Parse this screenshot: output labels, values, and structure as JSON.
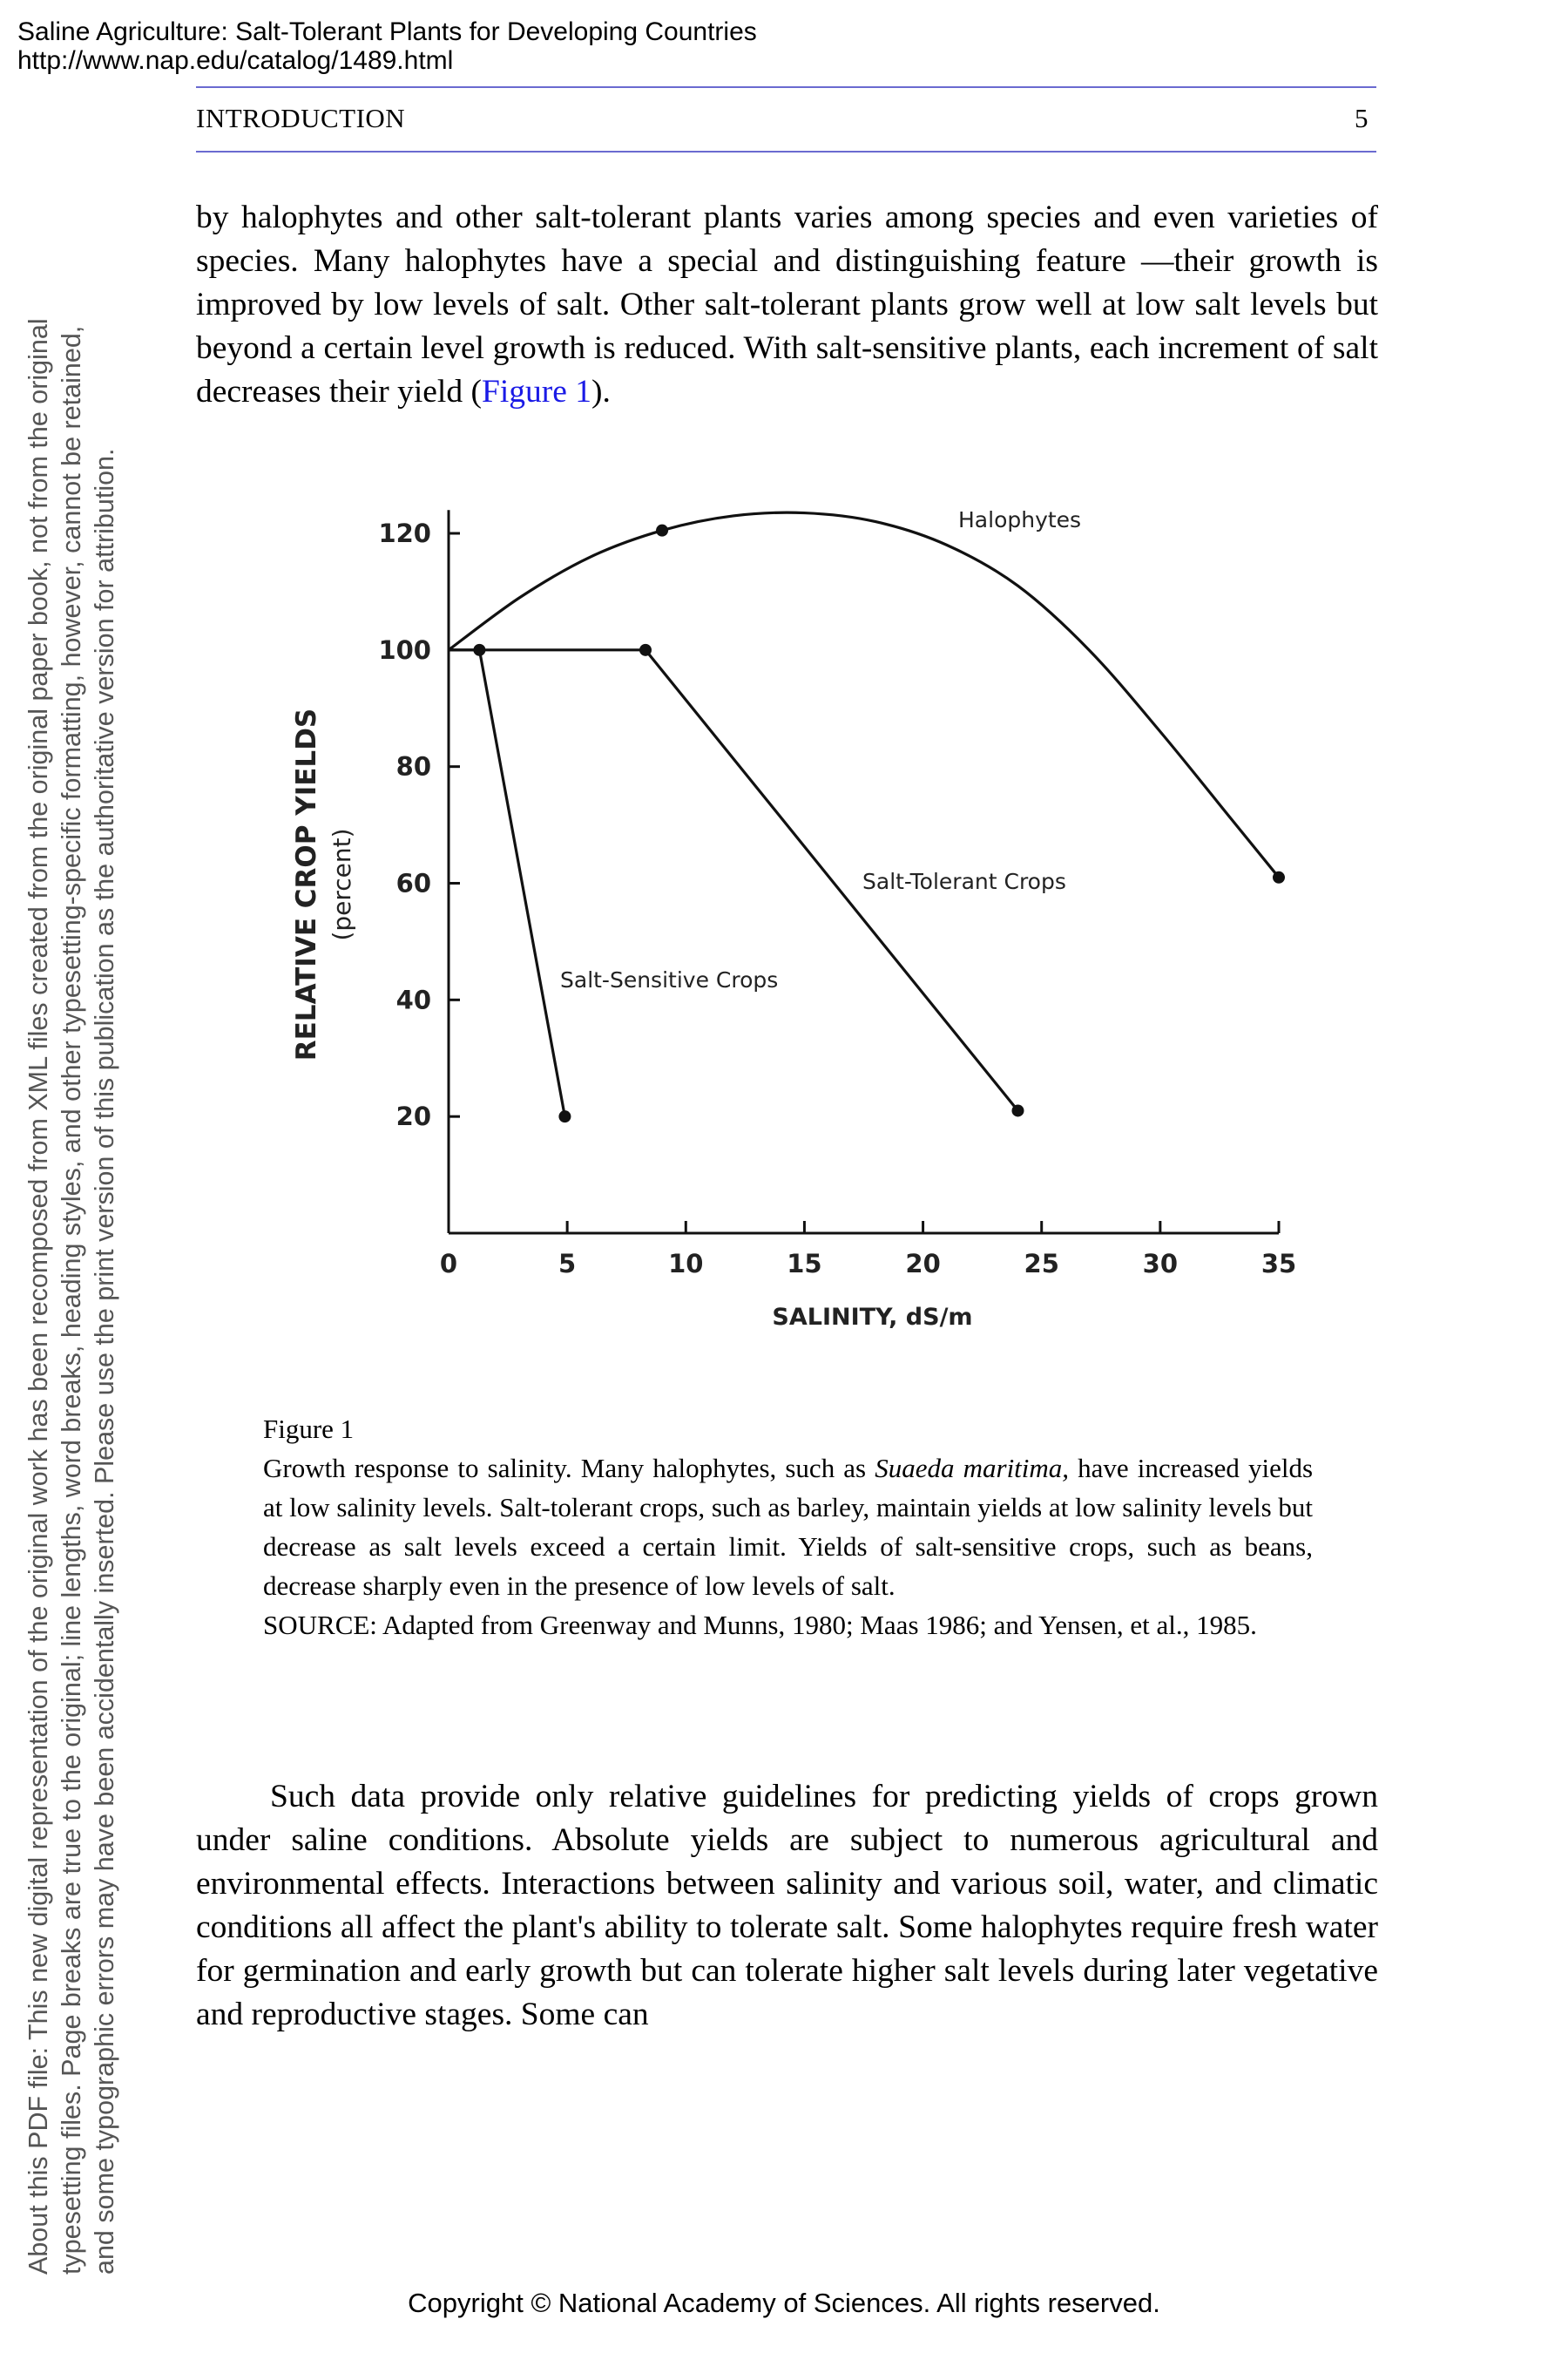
{
  "header": {
    "book_title": "Saline Agriculture: Salt-Tolerant Plants for Developing Countries",
    "url": "http://www.nap.edu/catalog/1489.html"
  },
  "running_head": {
    "section": "INTRODUCTION",
    "page_number": "5"
  },
  "side_note": {
    "line1": "About this PDF file: This new digital representation of the original work has been recomposed from XML files created from the original paper book, not from the original",
    "line2": "typesetting files. Page breaks are true to the original; line lengths, word breaks, heading styles, and other typesetting-specific formatting, however, cannot be retained,",
    "line3": "and some typographic errors may have been accidentally inserted. Please use the print version of this publication as the authoritative version for attribution."
  },
  "body": {
    "para1_text": "by halophytes and other salt-tolerant plants varies among species and even varieties of species. Many halophytes have a special and distinguishing feature —their growth is improved by low levels of salt. Other salt-tolerant plants grow well at low salt levels but beyond a certain level growth is reduced. With salt-sensitive plants, each increment of salt decreases their yield (",
    "para1_link": "Figure 1",
    "para1_end": ").",
    "para2_text": "Such data provide only relative guidelines for predicting yields of crops grown under saline conditions. Absolute yields are subject to numerous agricultural and environmental effects. Interactions between salinity and various soil, water, and climatic conditions all affect the plant's ability to tolerate salt. Some halophytes require fresh water for germination and early growth but can tolerate higher salt levels during later vegetative and reproductive stages. Some can"
  },
  "caption": {
    "label": "Figure 1",
    "text_a": "Growth response to salinity. Many halophytes, such as ",
    "species": "Suaeda maritima,",
    "text_b": " have increased yields at low salinity levels. Salt-tolerant crops, such as barley, maintain yields at low salinity levels but decrease as salt levels exceed a certain limit. Yields of salt-sensitive crops, such as beans, decrease sharply even in the presence of low levels of salt.",
    "source": "SOURCE: Adapted from Greenway and Munns, 1980; Maas 1986; and Yensen, et al., 1985."
  },
  "chart_data": {
    "type": "line",
    "title": "",
    "xlabel": "SALINITY, dS/m",
    "ylabel": "RELATIVE CROP YIELDS",
    "ylabel_unit": "(percent)",
    "xlim": [
      0,
      35
    ],
    "ylim": [
      0,
      125
    ],
    "x_ticks": [
      "0",
      "5",
      "10",
      "15",
      "20",
      "25",
      "30",
      "35"
    ],
    "y_ticks": [
      "20",
      "40",
      "60",
      "80",
      "100",
      "120"
    ],
    "grid": false,
    "series": [
      {
        "name": "Halophytes",
        "x": [
          0,
          3,
          6,
          9,
          12,
          15,
          18,
          21,
          24,
          27,
          30,
          33,
          35
        ],
        "y": [
          100,
          109,
          116,
          120.5,
          123,
          123.5,
          122,
          118,
          111,
          100,
          86,
          71,
          61
        ],
        "markers": [
          [
            9,
            120.5
          ],
          [
            35,
            61
          ]
        ]
      },
      {
        "name": "Salt-Tolerant Crops",
        "x": [
          0,
          8.3,
          24
        ],
        "y": [
          100,
          100,
          21
        ],
        "markers": [
          [
            8.3,
            100
          ],
          [
            24,
            21
          ]
        ]
      },
      {
        "name": "Salt-Sensitive Crops",
        "x": [
          0,
          1.3,
          4.9
        ],
        "y": [
          100,
          100,
          20
        ],
        "markers": [
          [
            1.3,
            100
          ],
          [
            4.9,
            20
          ]
        ]
      }
    ]
  },
  "footer": {
    "copyright": "Copyright © National Academy of Sciences. All rights reserved."
  }
}
